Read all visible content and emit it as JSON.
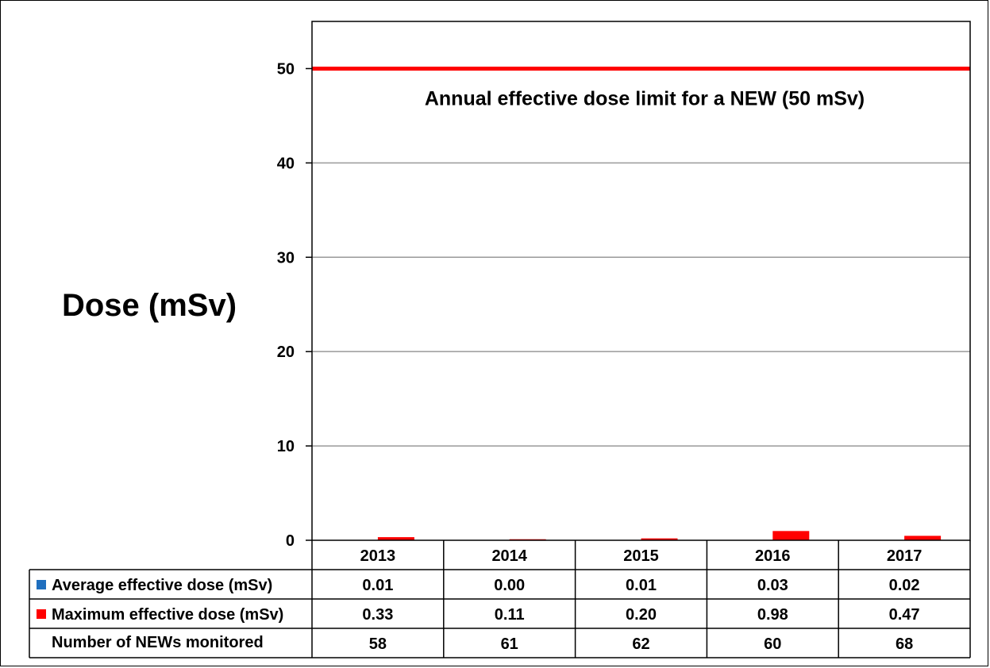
{
  "chart_data": {
    "type": "bar",
    "ylabel": "Dose (mSv)",
    "ylim": [
      0,
      55
    ],
    "yticks": [
      0,
      10,
      20,
      30,
      40,
      50
    ],
    "grid": true,
    "categories": [
      "2013",
      "2014",
      "2015",
      "2016",
      "2017"
    ],
    "series": [
      {
        "name": "Average effective dose (mSv)",
        "color": "#1f6fbf",
        "values": [
          0.01,
          0.0,
          0.01,
          0.03,
          0.02
        ],
        "labels": [
          "0.01",
          "0.00",
          "0.01",
          "0.03",
          "0.02"
        ]
      },
      {
        "name": "Maximum effective dose (mSv)",
        "color": "#ff0000",
        "values": [
          0.33,
          0.11,
          0.2,
          0.98,
          0.47
        ],
        "labels": [
          "0.33",
          "0.11",
          "0.20",
          "0.98",
          "0.47"
        ]
      }
    ],
    "table_rows": [
      {
        "label": "Number of NEWs monitored",
        "values": [
          "58",
          "61",
          "62",
          "60",
          "68"
        ]
      }
    ],
    "reference_line": {
      "value": 50,
      "color": "#ff0000",
      "label": "Annual effective dose limit for a NEW (50 mSv)"
    }
  }
}
